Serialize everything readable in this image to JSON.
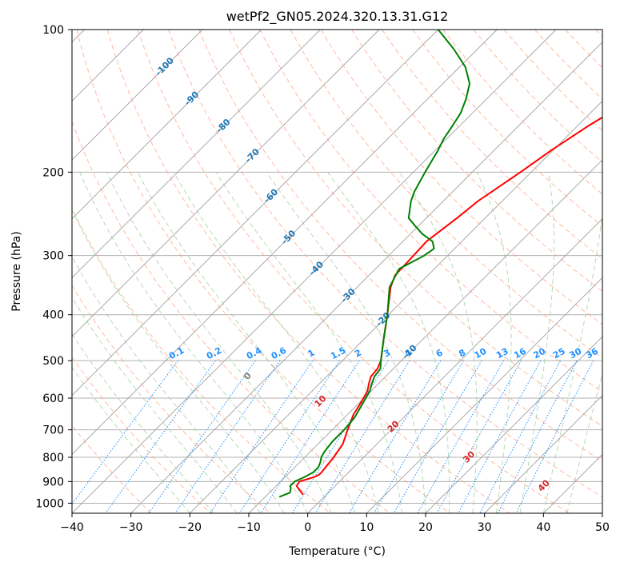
{
  "chart_data": {
    "type": "line",
    "title": "wetPf2_GN05.2024.320.13.31.G12",
    "xlabel": "Temperature (°C)",
    "ylabel": "Pressure (hPa)",
    "xlim": [
      -40,
      50
    ],
    "ylim": [
      1050,
      100
    ],
    "yscale": "log",
    "skew": "skew-T",
    "grid": true,
    "x_ticks": [
      "−40",
      "−30",
      "−20",
      "−10",
      "0",
      "10",
      "20",
      "30",
      "40",
      "50"
    ],
    "x_tick_values": [
      -40,
      -30,
      -20,
      -10,
      0,
      10,
      20,
      30,
      40,
      50
    ],
    "y_ticks": [
      "100",
      "200",
      "300",
      "400",
      "500",
      "600",
      "700",
      "800",
      "900",
      "1000"
    ],
    "y_tick_values": [
      100,
      200,
      300,
      400,
      500,
      600,
      700,
      800,
      900,
      1000
    ],
    "series": [
      {
        "color": "#ff0000",
        "pressure": [
          960,
          940,
          920,
          900,
          880,
          870,
          860,
          850,
          800,
          750,
          700,
          650,
          620,
          600,
          580,
          560,
          540,
          520,
          500,
          450,
          400,
          350,
          330,
          310,
          300,
          280,
          250,
          230,
          200,
          180,
          160,
          140,
          130,
          120,
          110,
          105,
          100
        ],
        "temperature": [
          -3.9,
          -5.2,
          -6.5,
          -6.8,
          -5.0,
          -4.6,
          -4.6,
          -4.7,
          -5.1,
          -5.8,
          -7.4,
          -9.0,
          -9.6,
          -10.1,
          -10.6,
          -11.6,
          -12.5,
          -12.7,
          -13.5,
          -16.7,
          -20.2,
          -24.3,
          -25.6,
          -25.7,
          -25.8,
          -26.0,
          -24.8,
          -24.1,
          -21.8,
          -20.3,
          -18.2,
          -15.2,
          -13.1,
          -11.0,
          -8.6,
          -6.9,
          -5.7
        ]
      },
      {
        "color": "#008000",
        "pressure": [
          970,
          950,
          930,
          920,
          900,
          880,
          860,
          840,
          820,
          800,
          780,
          760,
          740,
          720,
          700,
          680,
          660,
          650,
          620,
          600,
          580,
          560,
          540,
          520,
          500,
          450,
          400,
          350,
          320,
          300,
          290,
          280,
          270,
          260,
          250,
          230,
          220,
          200,
          180,
          170,
          160,
          150,
          140,
          130,
          120,
          110,
          100
        ],
        "temperature": [
          -7.6,
          -6.5,
          -7.1,
          -7.6,
          -7.6,
          -6.7,
          -6.0,
          -6.0,
          -6.5,
          -7.2,
          -7.6,
          -7.8,
          -8.0,
          -8.0,
          -8.0,
          -8.1,
          -8.3,
          -8.5,
          -9.2,
          -9.7,
          -10.2,
          -11.1,
          -11.9,
          -12.2,
          -13.5,
          -16.7,
          -20.2,
          -24.5,
          -26.0,
          -24.0,
          -23.5,
          -25.0,
          -28.0,
          -30.5,
          -33.0,
          -35.5,
          -36.5,
          -38.0,
          -39.5,
          -40.5,
          -41.2,
          -42.0,
          -43.5,
          -45.5,
          -49.0,
          -54.0,
          -60.0
        ]
      }
    ],
    "dry_adiabat_labels": [
      "-100",
      "-90",
      "-80",
      "-70",
      "-60",
      "-50",
      "-40",
      "-30",
      "-20",
      "-10",
      "0",
      "10",
      "20",
      "30",
      "40"
    ],
    "mixing_ratio_labels": [
      "0.1",
      "0.2",
      "0.4",
      "0.6",
      "1",
      "1.5",
      "2",
      "3",
      "4",
      "6",
      "8",
      "10",
      "13",
      "16",
      "20",
      "25",
      "30",
      "36"
    ],
    "colors": {
      "dry_adiabats": "#ff9f80",
      "moist_adiabats": "#99cc99",
      "mixing_ratio": "#1e90ff",
      "isotherms": "#a0a0a0",
      "dry_adiabat_label_cold": "#1f77b4",
      "dry_adiabat_label_warm": "#d62728",
      "dry_adiabat_label_zero": "#808080"
    }
  }
}
